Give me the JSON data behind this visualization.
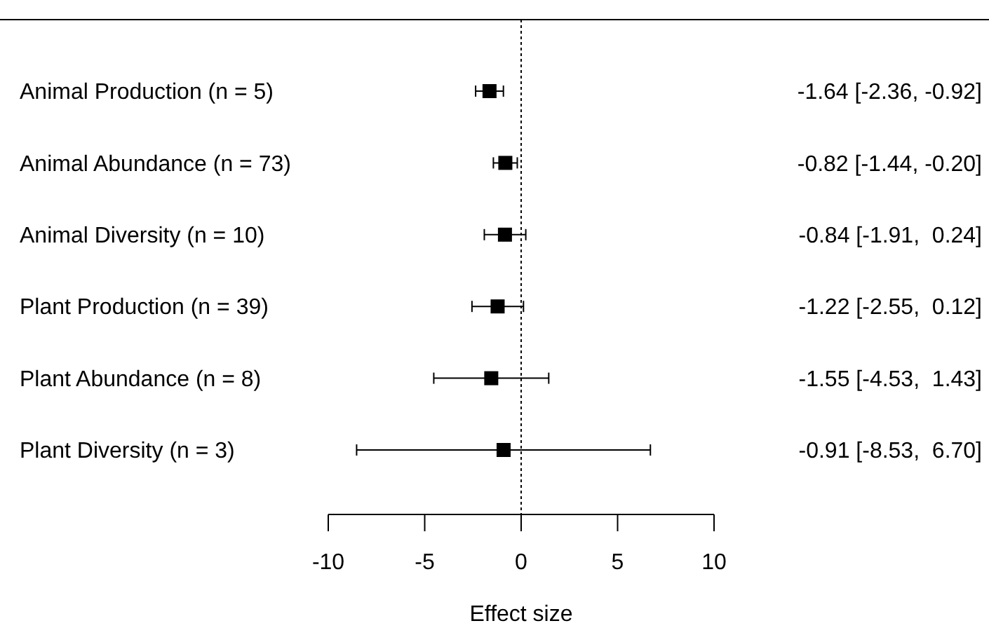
{
  "chart_data": {
    "type": "scatter",
    "orientation": "horizontal",
    "xlabel": "Effect size",
    "categories": [
      "Animal Production (n = 5)",
      "Animal Abundance (n = 73)",
      "Animal Diversity (n = 10)",
      "Plant Production (n = 39)",
      "Plant Abundance (n = 8)",
      "Plant Diversity (n = 3)"
    ],
    "values": [
      -1.64,
      -0.82,
      -0.84,
      -1.22,
      -1.55,
      -0.91
    ],
    "errors": [
      [
        -2.36,
        -0.92
      ],
      [
        -1.44,
        -0.2
      ],
      [
        -1.91,
        0.24
      ],
      [
        -2.55,
        0.12
      ],
      [
        -4.53,
        1.43
      ],
      [
        -8.53,
        6.7
      ]
    ],
    "value_labels": [
      "-1.64 [-2.36, -0.92]",
      "-0.82 [-1.44, -0.20]",
      "-0.84 [-1.91,  0.24]",
      "-1.22 [-2.55,  0.12]",
      "-1.55 [-4.53,  1.43]",
      "-0.91 [-8.53,  6.70]"
    ],
    "color": "#000000",
    "marker": "square",
    "xlim": [
      -10,
      10
    ],
    "xticks": [
      -10,
      -5,
      0,
      5,
      10
    ],
    "ref_lines": [
      {
        "axis": "x",
        "value": 0,
        "line_style": "dotted"
      }
    ]
  }
}
